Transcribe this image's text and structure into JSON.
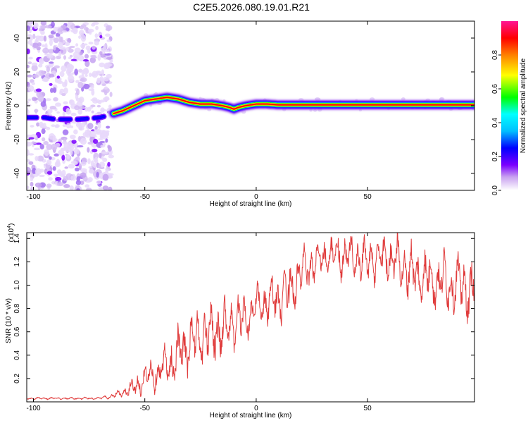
{
  "figure_title": "C2E5.2026.080.19.01.R21",
  "chart_data": [
    {
      "type": "heatmap",
      "title": "C2E5.2026.080.19.01.R21",
      "xlabel": "Height of straight line (km)",
      "ylabel": "Frequency (Hz)",
      "xlim": [
        -103,
        98
      ],
      "ylim": [
        -50,
        50
      ],
      "x_ticks": [
        -100,
        -50,
        0,
        50
      ],
      "y_ticks": [
        -40,
        -20,
        0,
        20,
        40
      ],
      "colorbar": {
        "label": "Normalized spectral amplitude",
        "range": [
          0,
          1
        ],
        "ticks": [
          0.0,
          0.2,
          0.4,
          0.6,
          0.8
        ],
        "tick_labels": [
          "0.0",
          "0.2",
          "0.4",
          "0.6",
          "0.8"
        ],
        "colormap": [
          "#ffffff",
          "#c8a0f0",
          "#7b00ff",
          "#0000ff",
          "#00bfff",
          "#00ffff",
          "#00ff00",
          "#ffff00",
          "#ff8000",
          "#ff0000",
          "#ff1493"
        ]
      },
      "ridge": {
        "x": [
          -103,
          -95,
          -90,
          -80,
          -70,
          -65,
          -60,
          -55,
          -50,
          -45,
          -40,
          -35,
          -30,
          -25,
          -20,
          -15,
          -12,
          -10,
          -8,
          -5,
          0,
          5,
          10,
          20,
          40,
          60,
          80,
          98
        ],
        "y": [
          -7,
          -7,
          -8,
          -8,
          -7,
          -5,
          -3,
          0,
          3,
          4,
          5,
          4,
          2,
          1,
          1,
          0,
          -1,
          -2,
          -1,
          0,
          1,
          1,
          0.5,
          0.5,
          0.5,
          0.5,
          0.5,
          0.5
        ]
      },
      "noise_region_x": [
        -103,
        -65
      ]
    },
    {
      "type": "line",
      "xlabel": "Height of straight line (km)",
      "ylabel": "SNR (10 * v/v)",
      "y_multiplier_label": "(x10",
      "y_multiplier_exponent": "4",
      "y_multiplier_close": ")",
      "xlim": [
        -103,
        98
      ],
      "ylim": [
        0,
        1.45
      ],
      "x_ticks": [
        -100,
        -50,
        0,
        50
      ],
      "y_ticks": [
        0.2,
        0.4,
        0.6,
        0.8,
        1.0,
        1.2,
        1.4
      ],
      "y_tick_labels": [
        "0.2",
        "0.4",
        "0.6",
        "0.8",
        "1.0",
        "1.2",
        "1.4"
      ],
      "series": [
        {
          "name": "SNR",
          "color": "#e03c3c",
          "trend_x": [
            -103,
            -70,
            -65,
            -60,
            -55,
            -50,
            -45,
            -40,
            -35,
            -30,
            -25,
            -20,
            -15,
            -10,
            -5,
            0,
            5,
            10,
            15,
            20,
            30,
            40,
            50,
            60,
            70,
            80,
            90,
            98
          ],
          "trend_y": [
            0.03,
            0.03,
            0.05,
            0.08,
            0.12,
            0.2,
            0.25,
            0.3,
            0.4,
            0.5,
            0.55,
            0.6,
            0.62,
            0.68,
            0.72,
            0.8,
            0.85,
            0.88,
            0.95,
            1.1,
            1.25,
            1.25,
            1.2,
            1.25,
            1.1,
            1.05,
            1.0,
            0.95
          ],
          "amplitude_y": [
            0.01,
            0.01,
            0.02,
            0.04,
            0.08,
            0.12,
            0.15,
            0.2,
            0.25,
            0.25,
            0.25,
            0.25,
            0.25,
            0.22,
            0.2,
            0.2,
            0.2,
            0.2,
            0.25,
            0.2,
            0.15,
            0.2,
            0.2,
            0.2,
            0.25,
            0.25,
            0.25,
            0.25
          ]
        }
      ]
    }
  ]
}
